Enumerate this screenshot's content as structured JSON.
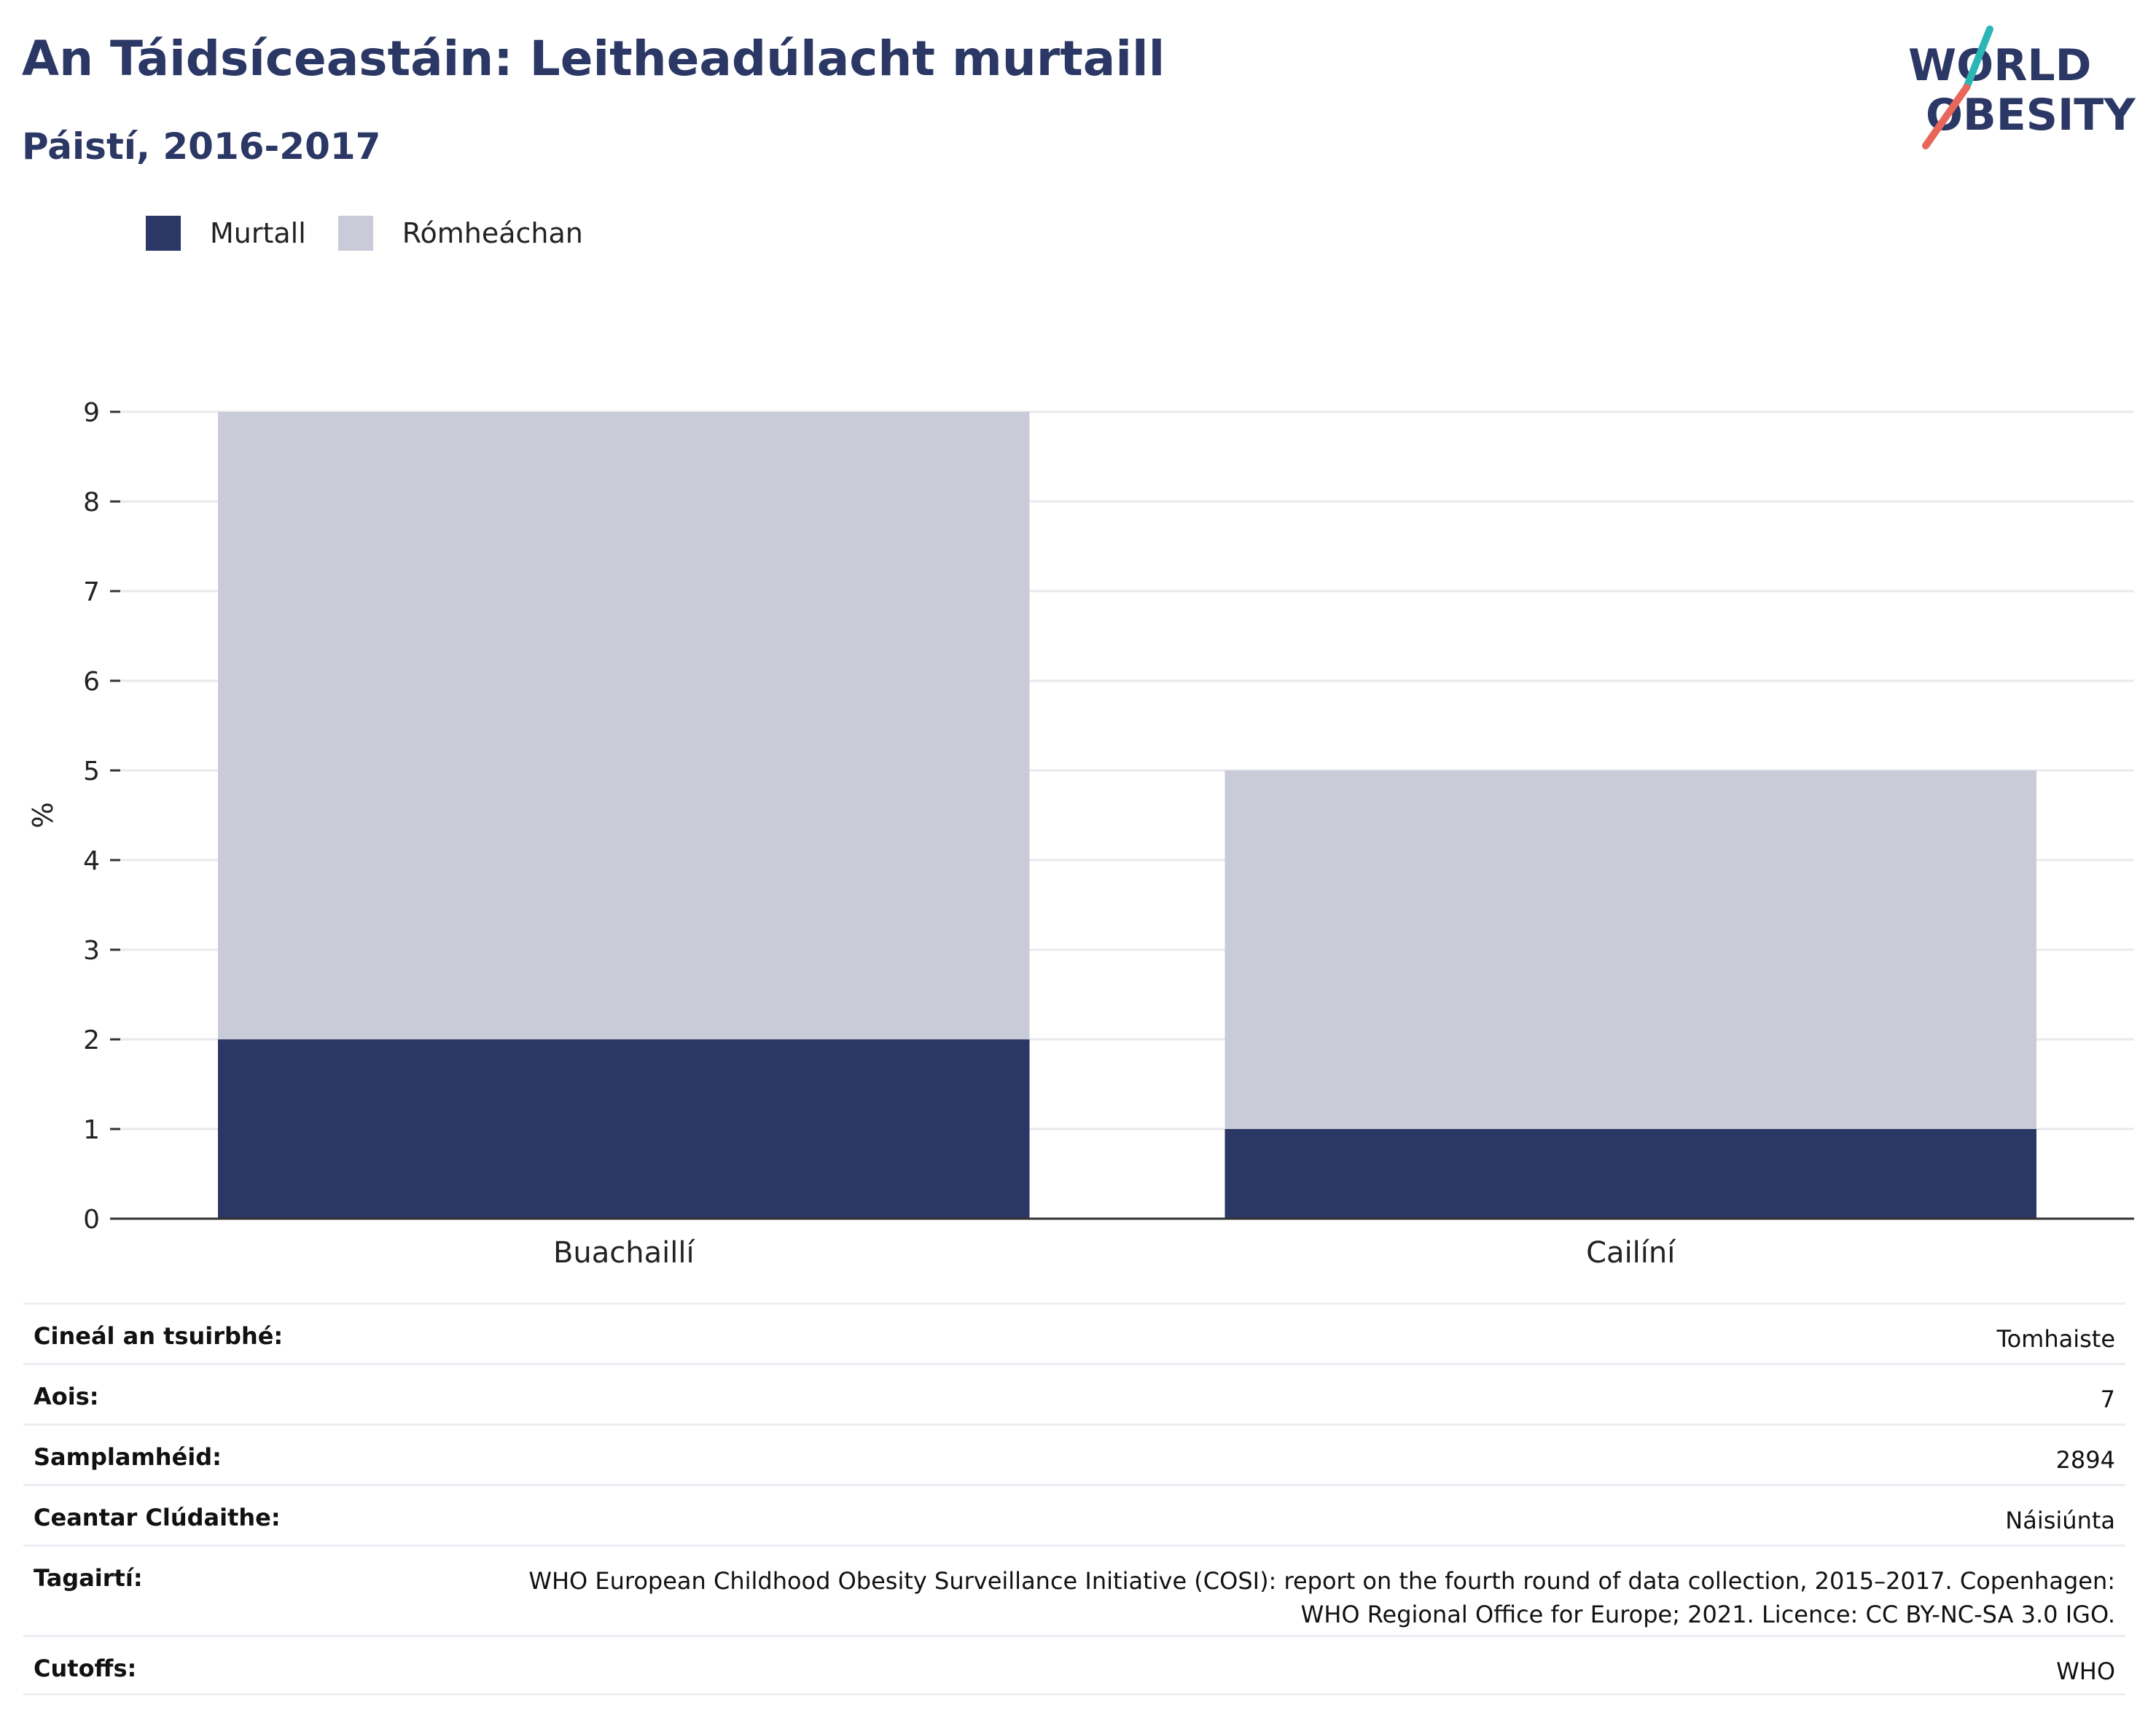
{
  "header": {
    "title": "An Táidsíceastáin: Leitheadúlacht murtaill",
    "subtitle": "Páistí, 2016-2017"
  },
  "logo": {
    "line1": "WORLD",
    "line2": "OBESITY",
    "colors": {
      "text": "#2b3764",
      "slash_top": "#2bb5b5",
      "slash_bottom": "#e8675a"
    }
  },
  "legend": [
    {
      "label": "Murtall",
      "color": "#2b3764"
    },
    {
      "label": "Rómheáchan",
      "color": "#c9ccd8"
    }
  ],
  "chart_data": {
    "type": "bar",
    "stacked": true,
    "categories": [
      "Buachaillí",
      "Cailíní"
    ],
    "series": [
      {
        "name": "Murtall",
        "values": [
          2.0,
          1.0
        ],
        "color": "#2b3764"
      },
      {
        "name": "Rómheáchan",
        "values": [
          7.0,
          4.0
        ],
        "color": "#c9ccd8"
      }
    ],
    "ylabel": "%",
    "ylim": [
      0,
      9
    ],
    "yticks": [
      "0",
      "1",
      "2",
      "3",
      "4",
      "5",
      "6",
      "7",
      "8",
      "9"
    ],
    "grid": true,
    "legend_position": "top-left"
  },
  "metadata": [
    {
      "key": "Cineál an tsuirbhé:",
      "value": [
        "Tomhaiste"
      ]
    },
    {
      "key": "Aois:",
      "value": [
        "7"
      ]
    },
    {
      "key": "Samplamhéid:",
      "value": [
        "2894"
      ]
    },
    {
      "key": "Ceantar Clúdaithe:",
      "value": [
        "Náisiúnta"
      ]
    },
    {
      "key": "Tagairtí:",
      "value": [
        "WHO European Childhood Obesity Surveillance Initiative (COSI): report on the fourth round of data collection, 2015–2017. Copenhagen:",
        "WHO Regional Office for Europe; 2021. Licence: CC BY-NC-SA 3.0 IGO."
      ]
    },
    {
      "key": "Cutoffs:",
      "value": [
        "WHO"
      ]
    }
  ]
}
